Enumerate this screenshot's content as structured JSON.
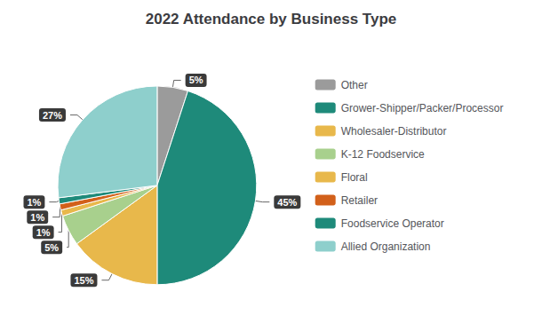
{
  "chart_data": {
    "type": "pie",
    "title": "2022 Attendance by Business Type",
    "categories": [
      "Other",
      "Grower-Shipper/Packer/Processor",
      "Wholesaler-Distributor",
      "K-12 Foodservice",
      "Floral",
      "Retailer",
      "Foodservice Operator",
      "Allied Organization"
    ],
    "values": [
      5,
      45,
      15,
      5,
      1,
      1,
      1,
      27
    ],
    "value_labels": [
      "5%",
      "45%",
      "15%",
      "5%",
      "1%",
      "1%",
      "1%",
      "27%"
    ],
    "colors": [
      "#9b9b9b",
      "#1e8a7a",
      "#e8b84b",
      "#a8d08d",
      "#e8b84b",
      "#d2601a",
      "#1e8a7a",
      "#8ecfcc"
    ],
    "data_labels": true,
    "legend": "right"
  }
}
